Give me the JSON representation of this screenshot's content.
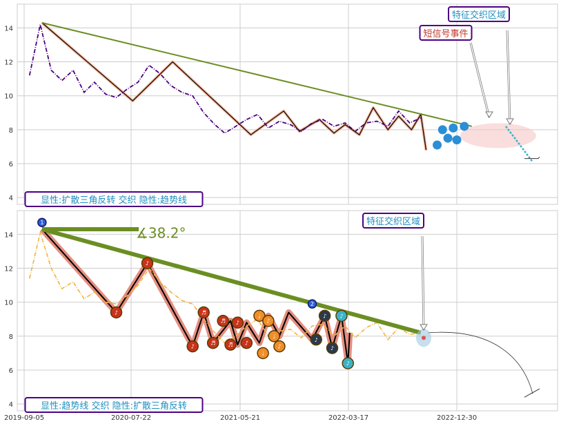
{
  "colors": {
    "grid": "#cccccc",
    "price_top": "#4b0082",
    "price_bottom": "#f0b43c",
    "trend": "#6b8e23",
    "zigzag": "#000000",
    "zigzag_glow_top": "#f4a582",
    "zigzag_glow_bottom": "#e07a6a",
    "label_border": "#4b0082",
    "label_text_blue": "#1f8ec0",
    "label_text_red": "#c0392b",
    "dot_blue": "#2a8fd6",
    "marker_red": "#c8341a",
    "marker_orange": "#ef8f2a",
    "marker_dark": "#2b3a4a",
    "marker_teal": "#3ab3c7",
    "marker_ring": "#5a3a00"
  },
  "x_ticks": [
    "2019-09-05",
    "2020-07-22",
    "2021-05-21",
    "2022-03-17",
    "2022-12-30"
  ],
  "chart_data": [
    {
      "type": "line",
      "panel": "top",
      "ylim": [
        3.6,
        15.4
      ],
      "yticks": [
        "4",
        "6",
        "8",
        "10",
        "12",
        "14"
      ],
      "x": [
        "2019-09-20",
        "2019-10-20",
        "2019-11-20",
        "2019-12-20",
        "2020-01-20",
        "2020-02-20",
        "2020-03-20",
        "2020-04-20",
        "2020-05-20",
        "2020-06-20",
        "2020-07-20",
        "2020-08-20",
        "2020-09-20",
        "2020-10-20",
        "2020-11-20",
        "2020-12-20",
        "2021-01-20",
        "2021-02-20",
        "2021-03-20",
        "2021-04-20",
        "2021-05-20",
        "2021-06-20",
        "2021-07-20",
        "2021-08-20",
        "2021-09-20",
        "2021-10-20",
        "2021-11-20",
        "2021-12-20",
        "2022-01-20",
        "2022-02-20",
        "2022-03-20",
        "2022-04-20",
        "2022-05-20",
        "2022-06-20",
        "2022-07-20",
        "2022-08-20",
        "2022-09-20"
      ],
      "series": [
        {
          "values": [
            11.2,
            14.2,
            11.5,
            10.9,
            11.5,
            10.2,
            10.8,
            10.1,
            9.9,
            10.4,
            10.8,
            11.8,
            11.3,
            10.6,
            10.2,
            10.0,
            9.0,
            8.3,
            7.8,
            8.2,
            8.6,
            8.9,
            8.1,
            8.5,
            8.3,
            7.9,
            8.4,
            8.6,
            8.2,
            8.4,
            7.9,
            8.4,
            8.5,
            8.2,
            9.1,
            8.4,
            8.7
          ]
        }
      ],
      "zigzag": {
        "x": [
          "2019-10-25",
          "2020-07-05",
          "2020-10-25",
          "2021-06-01",
          "2021-09-01",
          "2021-10-15",
          "2021-12-10",
          "2022-01-20",
          "2022-02-20",
          "2022-04-01",
          "2022-05-10",
          "2022-06-20",
          "2022-07-20",
          "2022-08-25",
          "2022-09-20",
          "2022-10-05"
        ],
        "y": [
          14.3,
          9.7,
          12.0,
          7.7,
          9.1,
          7.9,
          8.6,
          7.8,
          8.3,
          7.7,
          9.3,
          8.0,
          8.8,
          8.0,
          8.9,
          6.8
        ]
      },
      "trendline": {
        "x": [
          "2019-10-25",
          "2023-02-10"
        ],
        "y": [
          14.3,
          8.2
        ]
      },
      "signal_points": {
        "x": [
          "2022-11-05",
          "2022-11-20",
          "2022-12-05",
          "2022-12-20",
          "2022-12-30",
          "2023-01-20"
        ],
        "y": [
          7.1,
          8.0,
          7.5,
          8.1,
          7.4,
          8.2
        ]
      },
      "annotations": [
        "特征交织区域",
        "短信号事件",
        "显性:扩散三角反转 交织 隐性:趋势线"
      ]
    },
    {
      "type": "line",
      "panel": "bottom",
      "ylim": [
        3.6,
        15.4
      ],
      "yticks": [
        "4",
        "6",
        "8",
        "10",
        "12",
        "14"
      ],
      "x": [
        "2019-09-20",
        "2019-10-20",
        "2019-11-20",
        "2019-12-20",
        "2020-01-20",
        "2020-02-20",
        "2020-03-20",
        "2020-04-20",
        "2020-05-20",
        "2020-06-20",
        "2020-07-20",
        "2020-08-20",
        "2020-09-20",
        "2020-10-20",
        "2020-11-20",
        "2020-12-20",
        "2021-01-20",
        "2021-02-20",
        "2021-03-20",
        "2021-04-20",
        "2021-05-20",
        "2021-06-20",
        "2021-07-20",
        "2021-08-20",
        "2021-09-20",
        "2021-10-20",
        "2021-11-20",
        "2021-12-20",
        "2022-01-20",
        "2022-02-20",
        "2022-03-20",
        "2022-04-20",
        "2022-05-20",
        "2022-06-20",
        "2022-07-20",
        "2022-08-20",
        "2022-09-20"
      ],
      "series": [
        {
          "values": [
            11.4,
            14.1,
            12.0,
            10.8,
            11.2,
            10.2,
            10.6,
            10.0,
            9.9,
            10.4,
            11.0,
            12.0,
            11.2,
            10.6,
            10.1,
            9.9,
            9.0,
            8.2,
            7.6,
            8.0,
            8.6,
            9.0,
            8.0,
            8.3,
            8.4,
            7.9,
            8.6,
            8.7,
            8.0,
            8.6,
            7.9,
            8.5,
            8.8,
            7.8,
            8.5,
            8.1,
            8.2
          ]
        }
      ],
      "zigzag": {
        "x": [
          "2019-10-25",
          "2020-05-20",
          "2020-08-15",
          "2020-12-20",
          "2021-01-20",
          "2021-02-15",
          "2021-04-05",
          "2021-04-25",
          "2021-05-20",
          "2021-06-25",
          "2021-07-20",
          "2021-08-20",
          "2021-09-15",
          "2021-11-20",
          "2021-12-25",
          "2022-01-15",
          "2022-02-10",
          "2022-02-28",
          "2022-03-05"
        ],
        "y": [
          14.3,
          9.4,
          12.3,
          7.4,
          9.4,
          7.6,
          8.9,
          7.5,
          8.8,
          7.6,
          9.2,
          8.0,
          9.4,
          7.8,
          9.2,
          7.3,
          9.2,
          6.4,
          8.2
        ]
      },
      "markers": {
        "x": [
          "2019-10-25",
          "2020-05-20",
          "2020-08-15",
          "2020-12-20",
          "2021-01-20",
          "2021-02-15",
          "2021-03-15",
          "2021-04-05",
          "2021-04-25",
          "2021-05-20",
          "2021-06-25",
          "2021-07-05",
          "2021-07-20",
          "2021-08-05",
          "2021-08-20",
          "2021-11-20",
          "2021-12-01",
          "2021-12-25",
          "2022-01-15",
          "2022-02-10",
          "2022-02-28"
        ],
        "y": [
          14.7,
          9.4,
          12.3,
          7.4,
          9.4,
          7.6,
          8.9,
          7.5,
          8.8,
          7.6,
          9.2,
          7.0,
          8.9,
          8.0,
          7.4,
          9.9,
          7.8,
          9.2,
          7.3,
          9.2,
          6.4
        ],
        "glyphs": [
          "1",
          "♪",
          "♪",
          "♪",
          "♬",
          "♬",
          "♬",
          "♬",
          "♪",
          "♪",
          "♩",
          "♩",
          "♪",
          "♩",
          "♪",
          "2",
          "♪",
          "♪",
          "♪",
          "♪",
          "♪"
        ],
        "kinds": [
          "start",
          "red",
          "red",
          "red",
          "red",
          "red",
          "red",
          "red",
          "red",
          "red",
          "orange",
          "orange",
          "orange",
          "orange",
          "orange",
          "start2",
          "dark",
          "dark",
          "dark",
          "teal",
          "teal"
        ]
      },
      "trendline": {
        "x": [
          "2019-10-25",
          "2022-09-20"
        ],
        "y": [
          14.3,
          8.2
        ]
      },
      "flat_line": {
        "x": [
          "2019-10-25",
          "2020-07-22"
        ],
        "y": [
          14.3,
          14.3
        ]
      },
      "angle_label": "∡38.2°",
      "annotations": [
        "特征交织区域",
        "显性:趋势线 交织 隐性:扩散三角反转"
      ]
    }
  ]
}
